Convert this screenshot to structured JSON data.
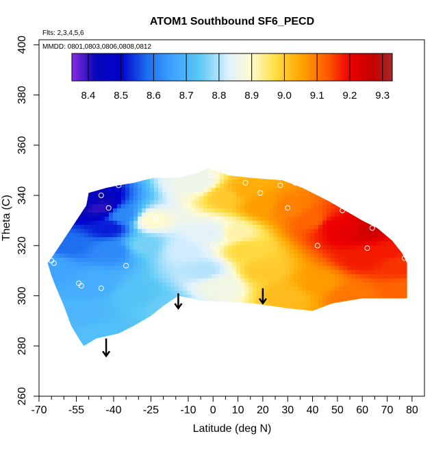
{
  "chart_data": {
    "type": "heatmap",
    "title": "ATOM1 Southbound SF6_PECD",
    "flights_label": "Flts: 2,3,4,5,6",
    "dates_label": "MMDD: 0801,0803,0806,0808,0812",
    "xlabel": "Latitude (deg N)",
    "ylabel": "Theta (C)",
    "xlim": [
      -70,
      85
    ],
    "ylim": [
      260,
      402
    ],
    "x_ticks": [
      -70,
      -55,
      -40,
      -25,
      -10,
      0,
      10,
      20,
      30,
      40,
      50,
      60,
      70,
      80
    ],
    "x_minor_ticks": [
      -65,
      -60,
      -50,
      -45,
      -35,
      -30,
      -20,
      -15,
      -5,
      5,
      15,
      25,
      35,
      45,
      55,
      65,
      75
    ],
    "y_ticks": [
      260,
      280,
      300,
      320,
      340,
      360,
      380,
      400
    ],
    "colorbar": {
      "min": 8.35,
      "max": 9.33,
      "ticks": [
        8.4,
        8.5,
        8.6,
        8.7,
        8.8,
        8.9,
        9.0,
        9.1,
        9.2,
        9.3
      ],
      "tick_labels": [
        "8.4",
        "8.5",
        "8.6",
        "8.7",
        "8.8",
        "8.9",
        "9.0",
        "9.1",
        "9.2",
        "9.3"
      ],
      "stops": [
        {
          "v": 8.35,
          "c": "#8b2be2"
        },
        {
          "v": 8.42,
          "c": "#0a08b8"
        },
        {
          "v": 8.5,
          "c": "#0000cd"
        },
        {
          "v": 8.58,
          "c": "#1e6ff0"
        },
        {
          "v": 8.66,
          "c": "#3fa4ff"
        },
        {
          "v": 8.74,
          "c": "#5ac8f5"
        },
        {
          "v": 8.83,
          "c": "#dff1ff"
        },
        {
          "v": 8.9,
          "c": "#fffbd0"
        },
        {
          "v": 8.97,
          "c": "#ffe048"
        },
        {
          "v": 9.05,
          "c": "#ffa500"
        },
        {
          "v": 9.13,
          "c": "#ff5b00"
        },
        {
          "v": 9.2,
          "c": "#ef0000"
        },
        {
          "v": 9.27,
          "c": "#c40000"
        },
        {
          "v": 9.33,
          "c": "#a52a2a"
        }
      ]
    },
    "field_nodes": [
      {
        "lat": -64,
        "theta": 312,
        "value": 8.66
      },
      {
        "lat": -58,
        "theta": 320,
        "value": 8.58
      },
      {
        "lat": -50,
        "theta": 338,
        "value": 8.44
      },
      {
        "lat": -46,
        "theta": 335,
        "value": 8.4
      },
      {
        "lat": -42,
        "theta": 327,
        "value": 8.52
      },
      {
        "lat": -36,
        "theta": 332,
        "value": 8.62
      },
      {
        "lat": -40,
        "theta": 318,
        "value": 8.62
      },
      {
        "lat": -48,
        "theta": 305,
        "value": 8.68
      },
      {
        "lat": -52,
        "theta": 292,
        "value": 8.7
      },
      {
        "lat": -46,
        "theta": 285,
        "value": 8.72
      },
      {
        "lat": -30,
        "theta": 300,
        "value": 8.73
      },
      {
        "lat": -20,
        "theta": 296,
        "value": 8.75
      },
      {
        "lat": -25,
        "theta": 330,
        "value": 8.9
      },
      {
        "lat": -28,
        "theta": 320,
        "value": 8.76
      },
      {
        "lat": -12,
        "theta": 318,
        "value": 8.82
      },
      {
        "lat": -6,
        "theta": 345,
        "value": 8.86
      },
      {
        "lat": -4,
        "theta": 310,
        "value": 8.8
      },
      {
        "lat": 0,
        "theta": 325,
        "value": 8.84
      },
      {
        "lat": 2,
        "theta": 304,
        "value": 8.87
      },
      {
        "lat": 5,
        "theta": 340,
        "value": 9.0
      },
      {
        "lat": 8,
        "theta": 325,
        "value": 8.92
      },
      {
        "lat": 13,
        "theta": 318,
        "value": 8.98
      },
      {
        "lat": 12,
        "theta": 342,
        "value": 9.04
      },
      {
        "lat": 20,
        "theta": 336,
        "value": 9.06
      },
      {
        "lat": 20,
        "theta": 310,
        "value": 9.0
      },
      {
        "lat": 30,
        "theta": 335,
        "value": 9.09
      },
      {
        "lat": 30,
        "theta": 300,
        "value": 9.02
      },
      {
        "lat": 40,
        "theta": 330,
        "value": 9.12
      },
      {
        "lat": 42,
        "theta": 305,
        "value": 9.06
      },
      {
        "lat": 48,
        "theta": 328,
        "value": 9.2
      },
      {
        "lat": 55,
        "theta": 326,
        "value": 9.22
      },
      {
        "lat": 62,
        "theta": 326,
        "value": 9.25
      },
      {
        "lat": 60,
        "theta": 315,
        "value": 9.18
      },
      {
        "lat": 70,
        "theta": 318,
        "value": 9.18
      },
      {
        "lat": 75,
        "theta": 312,
        "value": 9.16
      },
      {
        "lat": 78,
        "theta": 302,
        "value": 9.12
      },
      {
        "lat": 55,
        "theta": 300,
        "value": 9.1
      }
    ],
    "domain_boundary": [
      [
        -66.5,
        313
      ],
      [
        -63,
        318
      ],
      [
        -59,
        324
      ],
      [
        -55,
        330
      ],
      [
        -51,
        336
      ],
      [
        -50,
        341
      ],
      [
        -43,
        343
      ],
      [
        -38,
        344
      ],
      [
        -32,
        345
      ],
      [
        -24,
        347
      ],
      [
        -14,
        347
      ],
      [
        -6,
        349
      ],
      [
        -2,
        351
      ],
      [
        6,
        348
      ],
      [
        15,
        347
      ],
      [
        28,
        346
      ],
      [
        36,
        343
      ],
      [
        46,
        338
      ],
      [
        53,
        334
      ],
      [
        60,
        330
      ],
      [
        66,
        327
      ],
      [
        72,
        322
      ],
      [
        76,
        317
      ],
      [
        78,
        313
      ],
      [
        78,
        299
      ],
      [
        60,
        299
      ],
      [
        48,
        297
      ],
      [
        40,
        294
      ],
      [
        30,
        295
      ],
      [
        16,
        297
      ],
      [
        -4,
        298
      ],
      [
        -14,
        300
      ],
      [
        -20,
        296
      ],
      [
        -25,
        292
      ],
      [
        -32,
        288
      ],
      [
        -38,
        285
      ],
      [
        -47,
        283
      ],
      [
        -52,
        280
      ],
      [
        -54,
        283
      ],
      [
        -57,
        288
      ],
      [
        -60,
        296
      ],
      [
        -63,
        303
      ],
      [
        -65,
        308
      ]
    ],
    "observations": [
      {
        "lat": -65,
        "theta": 314
      },
      {
        "lat": -45,
        "theta": 340
      },
      {
        "lat": -42,
        "theta": 335
      },
      {
        "lat": -38,
        "theta": 344
      },
      {
        "lat": -54,
        "theta": 305
      },
      {
        "lat": -53,
        "theta": 304
      },
      {
        "lat": -45,
        "theta": 303
      },
      {
        "lat": -35,
        "theta": 312
      },
      {
        "lat": -23,
        "theta": 331
      },
      {
        "lat": -1,
        "theta": 348
      },
      {
        "lat": 0,
        "theta": 320
      },
      {
        "lat": 13,
        "theta": 345
      },
      {
        "lat": 19,
        "theta": 341
      },
      {
        "lat": 27,
        "theta": 344
      },
      {
        "lat": 30,
        "theta": 335
      },
      {
        "lat": 33,
        "theta": 345
      },
      {
        "lat": 42,
        "theta": 320
      },
      {
        "lat": 52,
        "theta": 334
      },
      {
        "lat": 62,
        "theta": 319
      },
      {
        "lat": 64,
        "theta": 327
      },
      {
        "lat": 77,
        "theta": 315
      },
      {
        "lat": 78,
        "theta": 298
      },
      {
        "lat": -64,
        "theta": 313
      }
    ],
    "arrows": [
      {
        "lat": -43,
        "theta_start": 283,
        "theta_end": 276
      },
      {
        "lat": -14,
        "theta_start": 301,
        "theta_end": 295
      },
      {
        "lat": 20,
        "theta_start": 303,
        "theta_end": 297
      }
    ]
  }
}
